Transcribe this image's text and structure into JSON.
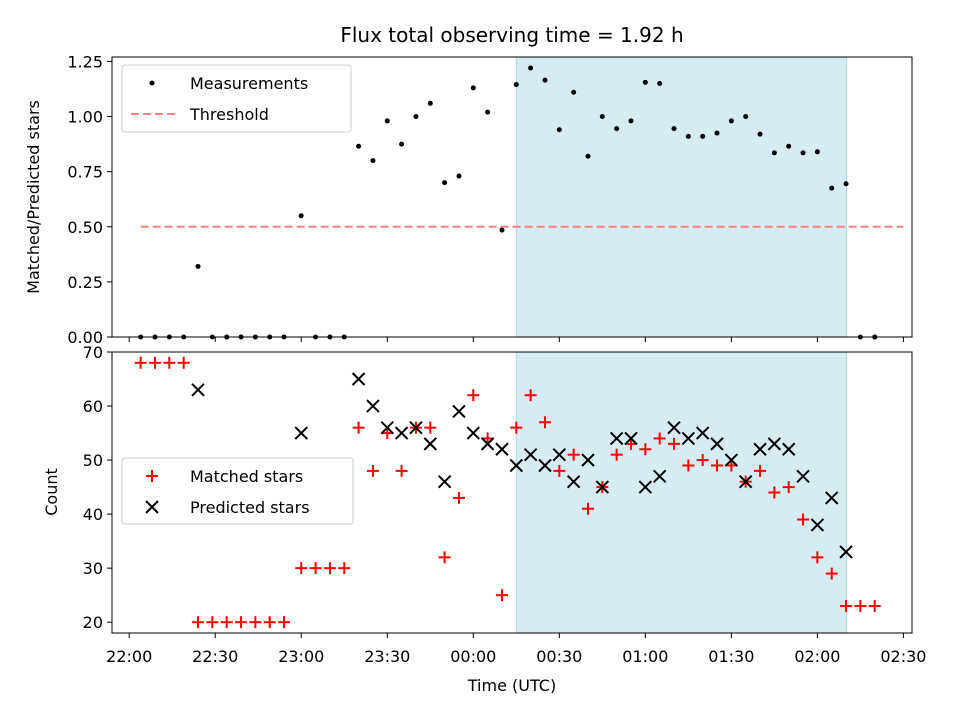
{
  "chart_data": {
    "type": "scatter",
    "title": "Flux total observing time = 1.92 h",
    "shared_x": {
      "label": "Time (UTC)",
      "unit": "hours since 22:00 UTC (labels show wall-clock)",
      "range": [
        -0.1,
        4.55
      ],
      "ticks": [
        0,
        0.5,
        1,
        1.5,
        2,
        2.5,
        3,
        3.5,
        4,
        4.5
      ],
      "tick_labels": [
        "22:00",
        "22:30",
        "23:00",
        "23:30",
        "00:00",
        "00:30",
        "01:00",
        "01:30",
        "02:00",
        "02:30"
      ]
    },
    "highlight": {
      "x_start": 2.25,
      "x_end": 4.17,
      "color": "#add8e6",
      "opacity": 0.5
    },
    "panels": [
      {
        "ylabel": "Matched/Predicted stars",
        "ylim": [
          0,
          1.27
        ],
        "yticks": [
          0,
          0.25,
          0.5,
          0.75,
          1.0,
          1.25
        ],
        "ytick_labels": [
          "0.00",
          "0.25",
          "0.50",
          "0.75",
          "1.00",
          "1.25"
        ],
        "legend": {
          "placement": "top-left",
          "entries": [
            "Measurements",
            "Threshold"
          ]
        },
        "threshold": {
          "name": "Threshold",
          "value": 0.5,
          "x_range": [
            0.0667,
            4.5
          ],
          "color": "#ff7f7f"
        },
        "series": [
          {
            "name": "Measurements",
            "marker": "dot",
            "color": "#000000",
            "points": [
              [
                0.0667,
                0
              ],
              [
                0.15,
                0
              ],
              [
                0.2333,
                0
              ],
              [
                0.3167,
                0
              ],
              [
                0.4,
                0.32
              ],
              [
                0.4833,
                0
              ],
              [
                0.5667,
                0
              ],
              [
                0.65,
                0
              ],
              [
                0.7333,
                0
              ],
              [
                0.8167,
                0
              ],
              [
                0.9,
                0
              ],
              [
                1.0,
                0.55
              ],
              [
                1.0833,
                0
              ],
              [
                1.1667,
                0
              ],
              [
                1.25,
                0
              ],
              [
                1.3333,
                0.865
              ],
              [
                1.4167,
                0.8
              ],
              [
                1.5,
                0.98
              ],
              [
                1.5833,
                0.875
              ],
              [
                1.6667,
                1.0
              ],
              [
                1.75,
                1.06
              ],
              [
                1.8333,
                0.7
              ],
              [
                1.9167,
                0.73
              ],
              [
                2.0,
                1.13
              ],
              [
                2.0833,
                1.02
              ],
              [
                2.1667,
                0.485
              ],
              [
                2.25,
                1.145
              ],
              [
                2.3333,
                1.22
              ],
              [
                2.4167,
                1.165
              ],
              [
                2.5,
                0.94
              ],
              [
                2.5833,
                1.11
              ],
              [
                2.6667,
                0.82
              ],
              [
                2.75,
                1.0
              ],
              [
                2.8333,
                0.945
              ],
              [
                2.9167,
                0.98
              ],
              [
                3.0,
                1.155
              ],
              [
                3.0833,
                1.15
              ],
              [
                3.1667,
                0.945
              ],
              [
                3.25,
                0.91
              ],
              [
                3.3333,
                0.91
              ],
              [
                3.4167,
                0.925
              ],
              [
                3.5,
                0.98
              ],
              [
                3.5833,
                1.0
              ],
              [
                3.6667,
                0.92
              ],
              [
                3.75,
                0.835
              ],
              [
                3.8333,
                0.865
              ],
              [
                3.9167,
                0.835
              ],
              [
                4.0,
                0.84
              ],
              [
                4.0833,
                0.675
              ],
              [
                4.1667,
                0.695
              ],
              [
                4.25,
                0
              ],
              [
                4.3333,
                0
              ]
            ]
          }
        ]
      },
      {
        "ylabel": "Count",
        "ylim": [
          18,
          70
        ],
        "yticks": [
          20,
          30,
          40,
          50,
          60,
          70
        ],
        "ytick_labels": [
          "20",
          "30",
          "40",
          "50",
          "60",
          "70"
        ],
        "legend": {
          "placement": "center-left",
          "entries": [
            "Matched stars",
            "Predicted stars"
          ]
        },
        "series": [
          {
            "name": "Matched stars",
            "marker": "plus",
            "color": "#ff0000",
            "points": [
              [
                0.0667,
                68
              ],
              [
                0.15,
                68
              ],
              [
                0.2333,
                68
              ],
              [
                0.3167,
                68
              ],
              [
                0.4,
                20
              ],
              [
                0.4833,
                20
              ],
              [
                0.5667,
                20
              ],
              [
                0.65,
                20
              ],
              [
                0.7333,
                20
              ],
              [
                0.8167,
                20
              ],
              [
                0.9,
                20
              ],
              [
                1.0,
                30
              ],
              [
                1.0833,
                30
              ],
              [
                1.1667,
                30
              ],
              [
                1.25,
                30
              ],
              [
                1.3333,
                56
              ],
              [
                1.4167,
                48
              ],
              [
                1.5,
                55
              ],
              [
                1.5833,
                48
              ],
              [
                1.6667,
                56
              ],
              [
                1.75,
                56
              ],
              [
                1.8333,
                32
              ],
              [
                1.9167,
                43
              ],
              [
                2.0,
                62
              ],
              [
                2.0833,
                54
              ],
              [
                2.1667,
                25
              ],
              [
                2.25,
                56
              ],
              [
                2.3333,
                62
              ],
              [
                2.4167,
                57
              ],
              [
                2.5,
                48
              ],
              [
                2.5833,
                51
              ],
              [
                2.6667,
                41
              ],
              [
                2.75,
                45
              ],
              [
                2.8333,
                51
              ],
              [
                2.9167,
                53
              ],
              [
                3.0,
                52
              ],
              [
                3.0833,
                54
              ],
              [
                3.1667,
                53
              ],
              [
                3.25,
                49
              ],
              [
                3.3333,
                50
              ],
              [
                3.4167,
                49
              ],
              [
                3.5,
                49
              ],
              [
                3.5833,
                46
              ],
              [
                3.6667,
                48
              ],
              [
                3.75,
                44
              ],
              [
                3.8333,
                45
              ],
              [
                3.9167,
                39
              ],
              [
                4.0,
                32
              ],
              [
                4.0833,
                29
              ],
              [
                4.1667,
                23
              ],
              [
                4.25,
                23
              ],
              [
                4.3333,
                23
              ]
            ]
          },
          {
            "name": "Predicted stars",
            "marker": "x",
            "color": "#000000",
            "points": [
              [
                0.4,
                63
              ],
              [
                1.0,
                55
              ],
              [
                1.3333,
                65
              ],
              [
                1.4167,
                60
              ],
              [
                1.5,
                56
              ],
              [
                1.5833,
                55
              ],
              [
                1.6667,
                56
              ],
              [
                1.75,
                53
              ],
              [
                1.8333,
                46
              ],
              [
                1.9167,
                59
              ],
              [
                2.0,
                55
              ],
              [
                2.0833,
                53
              ],
              [
                2.1667,
                52
              ],
              [
                2.25,
                49
              ],
              [
                2.3333,
                51
              ],
              [
                2.4167,
                49
              ],
              [
                2.5,
                51
              ],
              [
                2.5833,
                46
              ],
              [
                2.6667,
                50
              ],
              [
                2.75,
                45
              ],
              [
                2.8333,
                54
              ],
              [
                2.9167,
                54
              ],
              [
                3.0,
                45
              ],
              [
                3.0833,
                47
              ],
              [
                3.1667,
                56
              ],
              [
                3.25,
                54
              ],
              [
                3.3333,
                55
              ],
              [
                3.4167,
                53
              ],
              [
                3.5,
                50
              ],
              [
                3.5833,
                46
              ],
              [
                3.6667,
                52
              ],
              [
                3.75,
                53
              ],
              [
                3.8333,
                52
              ],
              [
                3.9167,
                47
              ],
              [
                4.0,
                38
              ],
              [
                4.0833,
                43
              ],
              [
                4.1667,
                33
              ]
            ]
          }
        ]
      }
    ]
  }
}
